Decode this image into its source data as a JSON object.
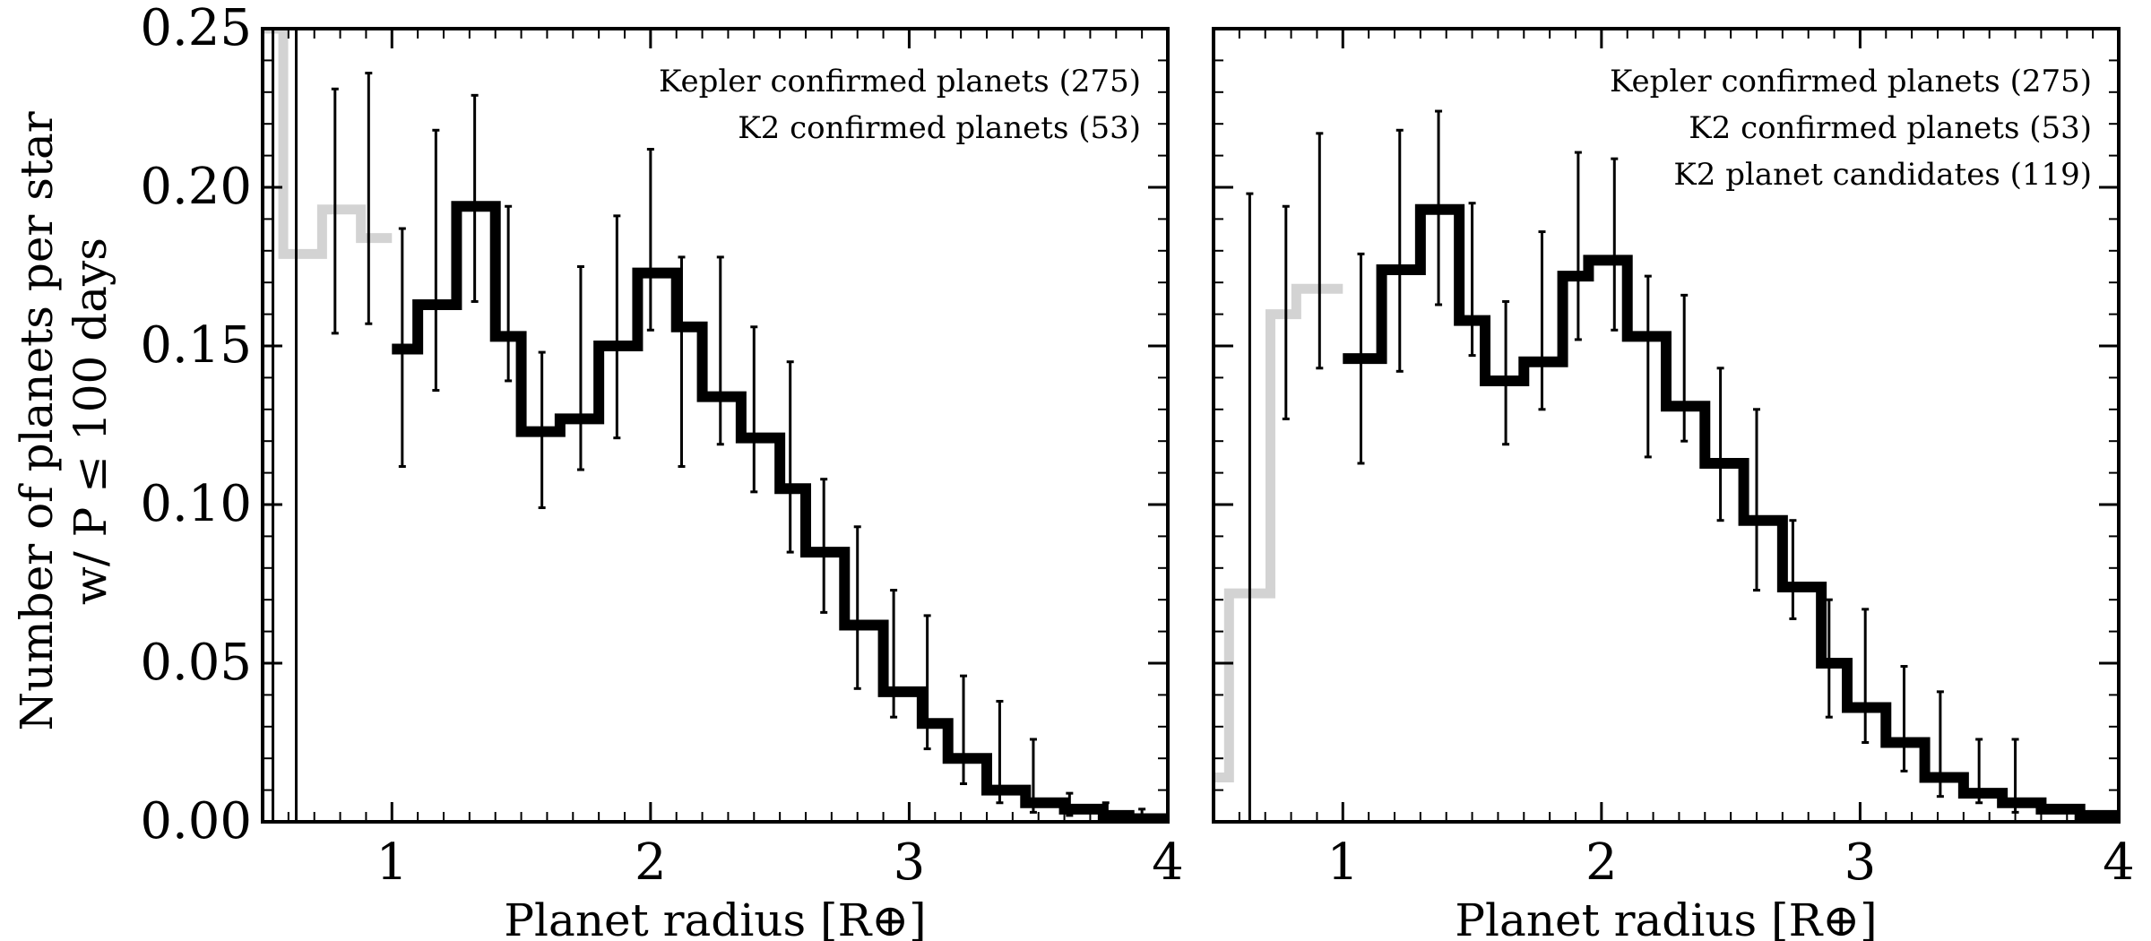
{
  "figure": {
    "ylabel_line1": "Number of planets per star",
    "ylabel_line2": "w/ P ≤ 100 days",
    "ytick_labels": [
      "0.00",
      "0.05",
      "0.10",
      "0.15",
      "0.20",
      "0.25"
    ]
  },
  "chart_data": [
    {
      "type": "step",
      "xlabel": "Planet radius [R⊕]",
      "ylabel": "Number of planets per star w/ P ≤ 100 days",
      "xlim": [
        0.5,
        4.0
      ],
      "ylim": [
        0.0,
        0.25
      ],
      "xticks": [
        1,
        2,
        3,
        4
      ],
      "yticks": [
        0.0,
        0.05,
        0.1,
        0.15,
        0.2,
        0.25
      ],
      "grid": false,
      "legend_position": "top-right",
      "legend": [
        "Kepler confirmed planets (275)",
        "K2 confirmed planets (53)"
      ],
      "colors": {
        "main": "#000000",
        "faded": "#d3d3d3"
      },
      "bins_faded": [
        {
          "x0": 0.5,
          "x1": 0.58,
          "y": 0.25
        },
        {
          "x0": 0.58,
          "x1": 0.73,
          "y": 0.179
        },
        {
          "x0": 0.73,
          "x1": 0.88,
          "y": 0.193
        },
        {
          "x0": 0.88,
          "x1": 1.0,
          "y": 0.184
        }
      ],
      "bins": [
        {
          "x0": 1.0,
          "x1": 1.1,
          "y": 0.149
        },
        {
          "x0": 1.1,
          "x1": 1.25,
          "y": 0.163
        },
        {
          "x0": 1.25,
          "x1": 1.4,
          "y": 0.194
        },
        {
          "x0": 1.4,
          "x1": 1.5,
          "y": 0.153
        },
        {
          "x0": 1.5,
          "x1": 1.65,
          "y": 0.123
        },
        {
          "x0": 1.65,
          "x1": 1.8,
          "y": 0.127
        },
        {
          "x0": 1.8,
          "x1": 1.95,
          "y": 0.15
        },
        {
          "x0": 1.95,
          "x1": 2.1,
          "y": 0.173
        },
        {
          "x0": 2.1,
          "x1": 2.2,
          "y": 0.156
        },
        {
          "x0": 2.2,
          "x1": 2.35,
          "y": 0.134
        },
        {
          "x0": 2.35,
          "x1": 2.5,
          "y": 0.121
        },
        {
          "x0": 2.5,
          "x1": 2.6,
          "y": 0.105
        },
        {
          "x0": 2.6,
          "x1": 2.75,
          "y": 0.085
        },
        {
          "x0": 2.75,
          "x1": 2.9,
          "y": 0.062
        },
        {
          "x0": 2.9,
          "x1": 3.05,
          "y": 0.041
        },
        {
          "x0": 3.05,
          "x1": 3.15,
          "y": 0.031
        },
        {
          "x0": 3.15,
          "x1": 3.3,
          "y": 0.02
        },
        {
          "x0": 3.3,
          "x1": 3.45,
          "y": 0.01
        },
        {
          "x0": 3.45,
          "x1": 3.6,
          "y": 0.006
        },
        {
          "x0": 3.6,
          "x1": 3.75,
          "y": 0.004
        },
        {
          "x0": 3.75,
          "x1": 3.85,
          "y": 0.002
        },
        {
          "x0": 3.85,
          "x1": 4.0,
          "y": 0.001
        }
      ],
      "errorbars": [
        {
          "x": 0.54,
          "lo": 0.0,
          "hi": 0.25
        },
        {
          "x": 0.63,
          "lo": 0.0,
          "hi": 0.25
        },
        {
          "x": 0.78,
          "lo": 0.154,
          "hi": 0.231
        },
        {
          "x": 0.91,
          "lo": 0.157,
          "hi": 0.236
        },
        {
          "x": 1.04,
          "lo": 0.112,
          "hi": 0.187
        },
        {
          "x": 1.17,
          "lo": 0.136,
          "hi": 0.218
        },
        {
          "x": 1.32,
          "lo": 0.164,
          "hi": 0.229
        },
        {
          "x": 1.45,
          "lo": 0.139,
          "hi": 0.194
        },
        {
          "x": 1.58,
          "lo": 0.099,
          "hi": 0.148
        },
        {
          "x": 1.73,
          "lo": 0.111,
          "hi": 0.175
        },
        {
          "x": 1.87,
          "lo": 0.121,
          "hi": 0.191
        },
        {
          "x": 2.0,
          "lo": 0.155,
          "hi": 0.212
        },
        {
          "x": 2.12,
          "lo": 0.112,
          "hi": 0.178
        },
        {
          "x": 2.27,
          "lo": 0.119,
          "hi": 0.178
        },
        {
          "x": 2.4,
          "lo": 0.104,
          "hi": 0.156
        },
        {
          "x": 2.54,
          "lo": 0.085,
          "hi": 0.145
        },
        {
          "x": 2.67,
          "lo": 0.066,
          "hi": 0.108
        },
        {
          "x": 2.8,
          "lo": 0.042,
          "hi": 0.093
        },
        {
          "x": 2.94,
          "lo": 0.033,
          "hi": 0.073
        },
        {
          "x": 3.07,
          "lo": 0.023,
          "hi": 0.065
        },
        {
          "x": 3.21,
          "lo": 0.012,
          "hi": 0.046
        },
        {
          "x": 3.35,
          "lo": 0.006,
          "hi": 0.038
        },
        {
          "x": 3.48,
          "lo": 0.003,
          "hi": 0.026
        },
        {
          "x": 3.62,
          "lo": 0.002,
          "hi": 0.009
        },
        {
          "x": 3.76,
          "lo": 0.001,
          "hi": 0.006
        },
        {
          "x": 3.9,
          "lo": 0.0,
          "hi": 0.004
        }
      ]
    },
    {
      "type": "step",
      "xlabel": "Planet radius [R⊕]",
      "xlim": [
        0.5,
        4.0
      ],
      "ylim": [
        0.0,
        0.25
      ],
      "xticks": [
        1,
        2,
        3,
        4
      ],
      "grid": false,
      "legend_position": "top-right",
      "legend": [
        "Kepler confirmed planets (275)",
        "K2 confirmed planets (53)",
        "K2 planet candidates (119)"
      ],
      "colors": {
        "main": "#000000",
        "faded": "#d3d3d3"
      },
      "bins_faded": [
        {
          "x0": 0.5,
          "x1": 0.56,
          "y": 0.014
        },
        {
          "x0": 0.56,
          "x1": 0.72,
          "y": 0.072
        },
        {
          "x0": 0.72,
          "x1": 0.82,
          "y": 0.16
        },
        {
          "x0": 0.82,
          "x1": 1.0,
          "y": 0.168
        }
      ],
      "bins": [
        {
          "x0": 1.0,
          "x1": 1.15,
          "y": 0.146
        },
        {
          "x0": 1.15,
          "x1": 1.3,
          "y": 0.174
        },
        {
          "x0": 1.3,
          "x1": 1.45,
          "y": 0.193
        },
        {
          "x0": 1.45,
          "x1": 1.55,
          "y": 0.158
        },
        {
          "x0": 1.55,
          "x1": 1.7,
          "y": 0.139
        },
        {
          "x0": 1.7,
          "x1": 1.85,
          "y": 0.145
        },
        {
          "x0": 1.85,
          "x1": 1.95,
          "y": 0.172
        },
        {
          "x0": 1.95,
          "x1": 2.1,
          "y": 0.177
        },
        {
          "x0": 2.1,
          "x1": 2.25,
          "y": 0.153
        },
        {
          "x0": 2.25,
          "x1": 2.4,
          "y": 0.131
        },
        {
          "x0": 2.4,
          "x1": 2.55,
          "y": 0.113
        },
        {
          "x0": 2.55,
          "x1": 2.7,
          "y": 0.095
        },
        {
          "x0": 2.7,
          "x1": 2.85,
          "y": 0.074
        },
        {
          "x0": 2.85,
          "x1": 2.95,
          "y": 0.05
        },
        {
          "x0": 2.95,
          "x1": 3.1,
          "y": 0.036
        },
        {
          "x0": 3.1,
          "x1": 3.25,
          "y": 0.025
        },
        {
          "x0": 3.25,
          "x1": 3.4,
          "y": 0.014
        },
        {
          "x0": 3.4,
          "x1": 3.55,
          "y": 0.009
        },
        {
          "x0": 3.55,
          "x1": 3.7,
          "y": 0.006
        },
        {
          "x0": 3.7,
          "x1": 3.85,
          "y": 0.004
        },
        {
          "x0": 3.85,
          "x1": 4.0,
          "y": 0.002
        }
      ],
      "errorbars": [
        {
          "x": 0.64,
          "lo": 0.0,
          "hi": 0.198
        },
        {
          "x": 0.78,
          "lo": 0.127,
          "hi": 0.194
        },
        {
          "x": 0.91,
          "lo": 0.143,
          "hi": 0.217
        },
        {
          "x": 1.07,
          "lo": 0.113,
          "hi": 0.179
        },
        {
          "x": 1.22,
          "lo": 0.142,
          "hi": 0.218
        },
        {
          "x": 1.37,
          "lo": 0.163,
          "hi": 0.224
        },
        {
          "x": 1.5,
          "lo": 0.147,
          "hi": 0.195
        },
        {
          "x": 1.63,
          "lo": 0.119,
          "hi": 0.164
        },
        {
          "x": 1.77,
          "lo": 0.13,
          "hi": 0.186
        },
        {
          "x": 1.91,
          "lo": 0.152,
          "hi": 0.211
        },
        {
          "x": 2.05,
          "lo": 0.155,
          "hi": 0.209
        },
        {
          "x": 2.18,
          "lo": 0.115,
          "hi": 0.172
        },
        {
          "x": 2.32,
          "lo": 0.12,
          "hi": 0.166
        },
        {
          "x": 2.46,
          "lo": 0.095,
          "hi": 0.143
        },
        {
          "x": 2.6,
          "lo": 0.073,
          "hi": 0.13
        },
        {
          "x": 2.74,
          "lo": 0.064,
          "hi": 0.095
        },
        {
          "x": 2.88,
          "lo": 0.033,
          "hi": 0.07
        },
        {
          "x": 3.02,
          "lo": 0.025,
          "hi": 0.067
        },
        {
          "x": 3.17,
          "lo": 0.016,
          "hi": 0.049
        },
        {
          "x": 3.31,
          "lo": 0.008,
          "hi": 0.041
        },
        {
          "x": 3.46,
          "lo": 0.006,
          "hi": 0.026
        },
        {
          "x": 3.6,
          "lo": 0.003,
          "hi": 0.026
        }
      ]
    }
  ]
}
